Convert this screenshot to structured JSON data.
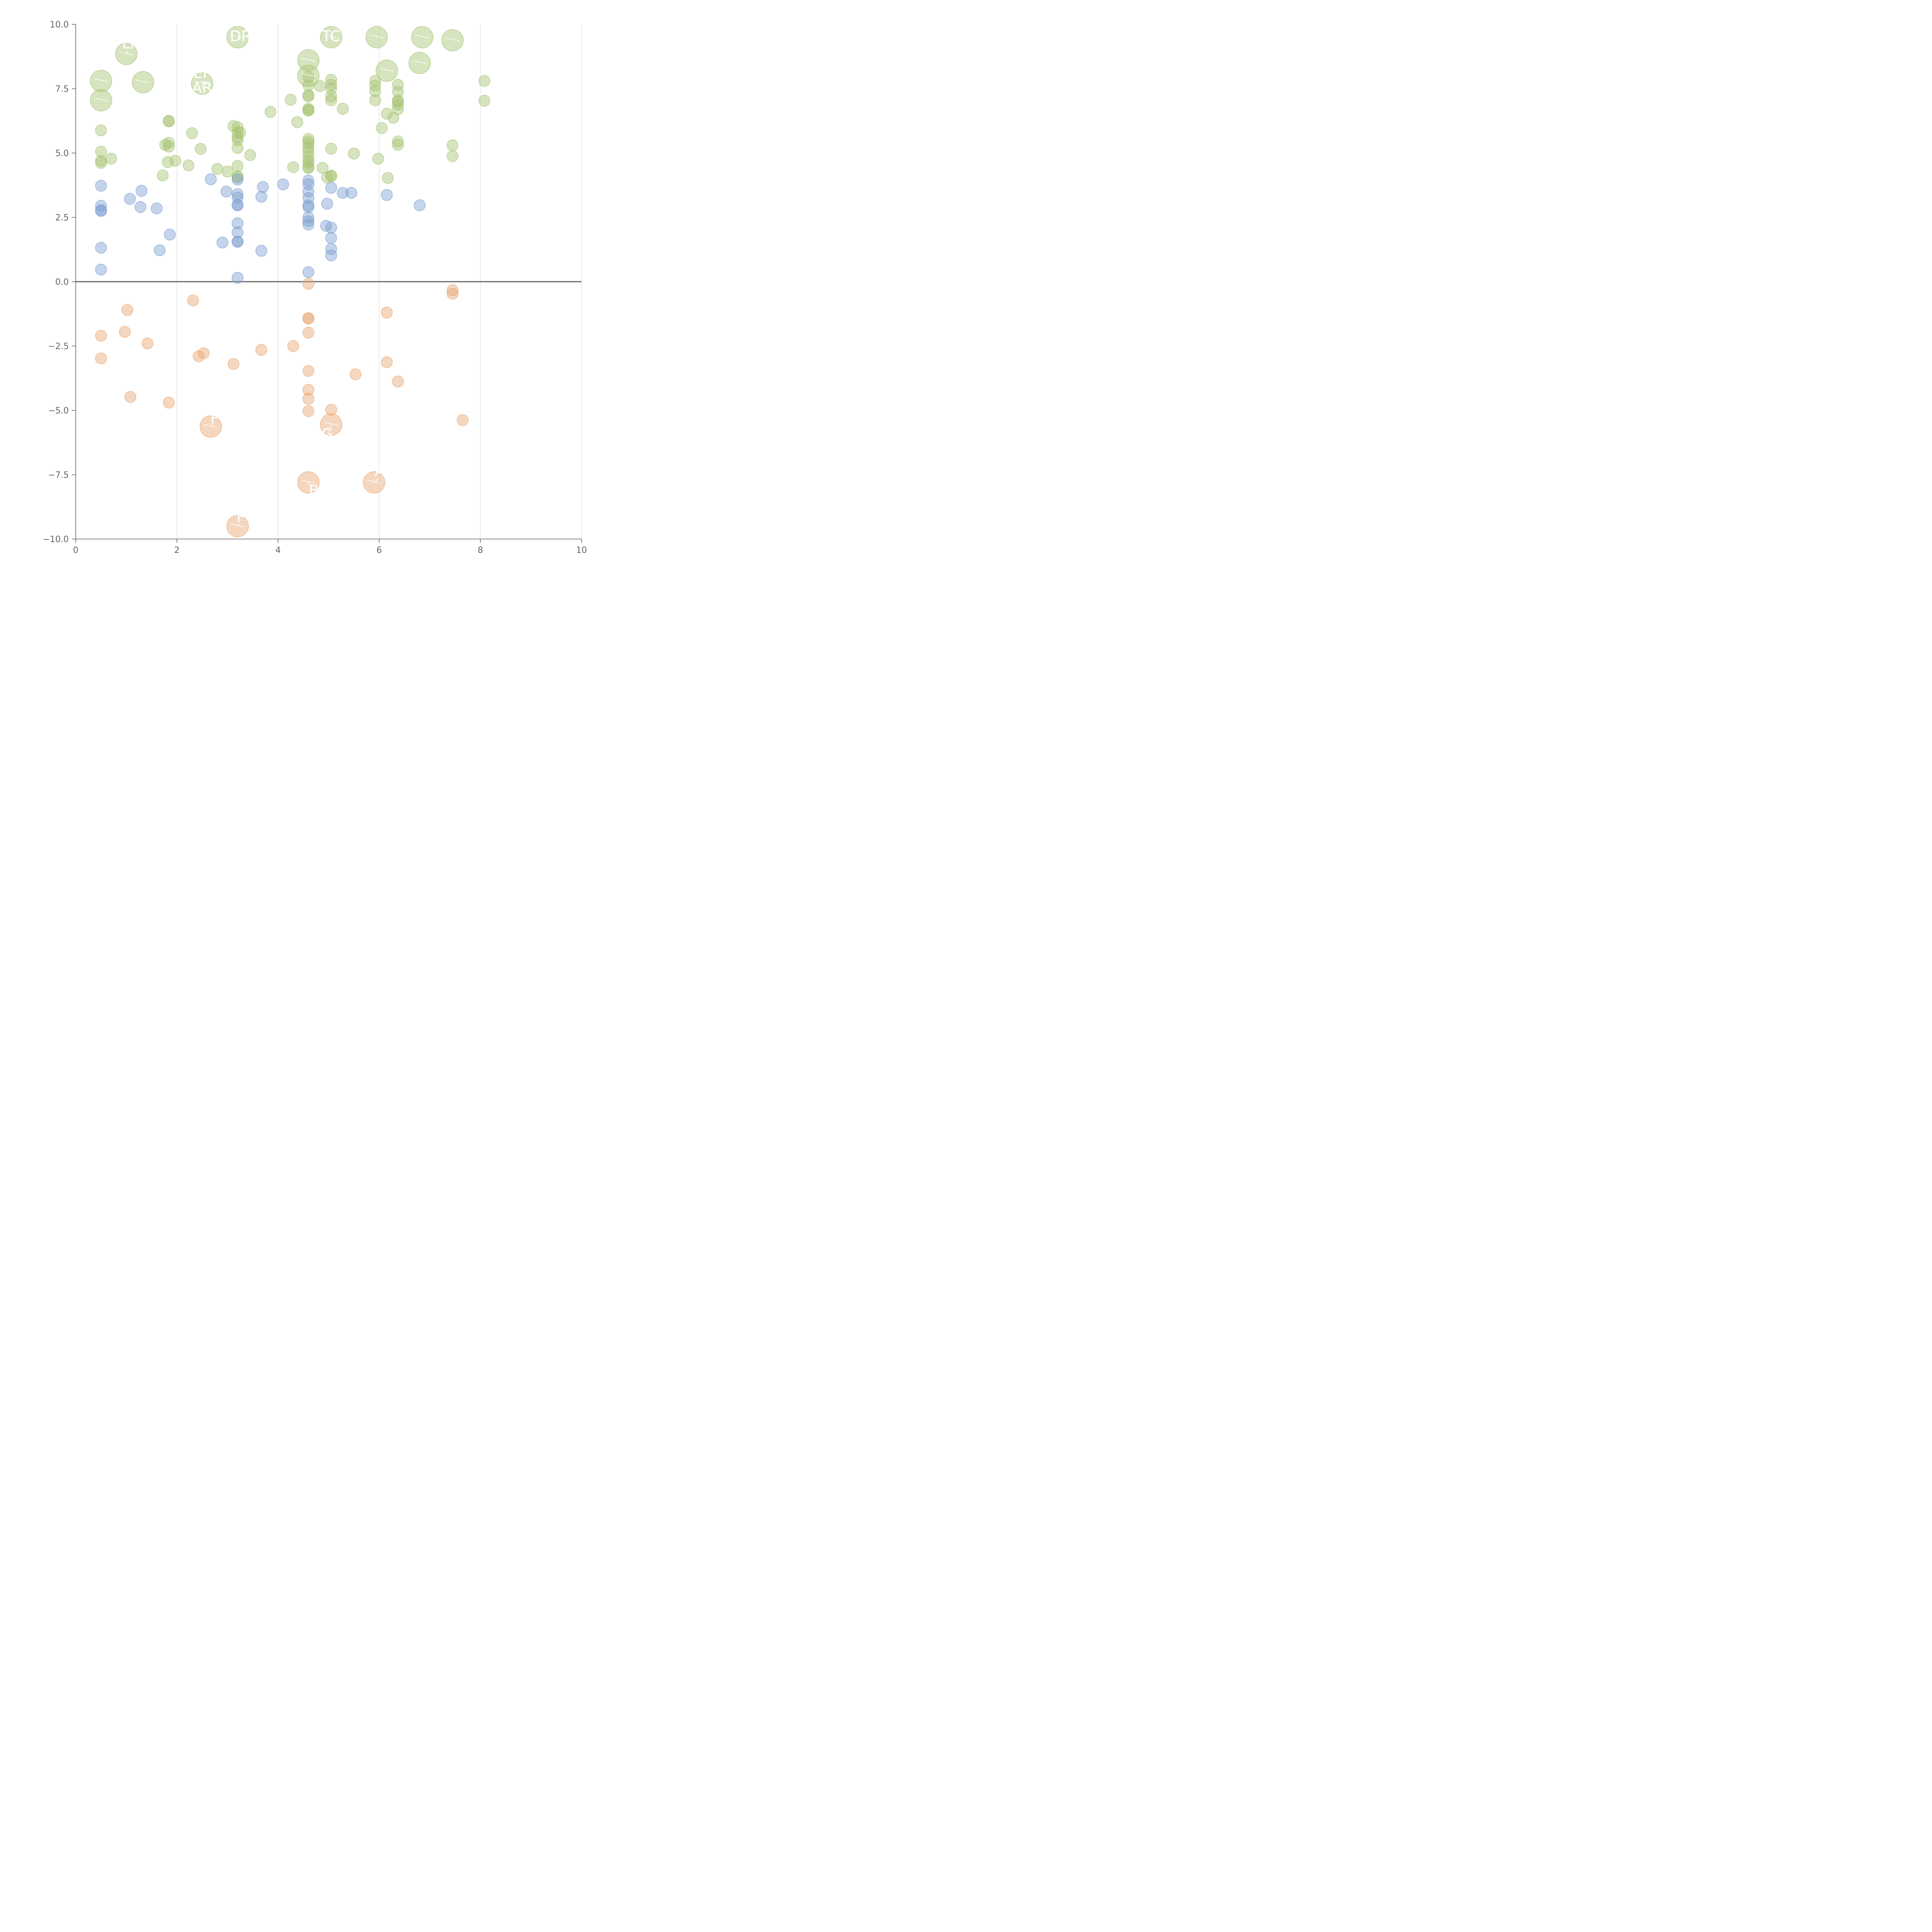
{
  "chart_data": {
    "type": "scatter",
    "title": "",
    "xlabel": "",
    "ylabel": "",
    "xlim": [
      0,
      10
    ],
    "ylim": [
      -10,
      10
    ],
    "x_ticks": [
      0,
      2,
      4,
      6,
      8,
      10
    ],
    "x_tick_labels": [
      "0",
      "2",
      "4",
      "6",
      "8",
      "10"
    ],
    "y_ticks": [
      -10,
      -7.5,
      -5,
      -2.5,
      0,
      2.5,
      5,
      7.5,
      10
    ],
    "y_tick_labels": [
      "−10.0",
      "−7.5",
      "−5.0",
      "−2.5",
      "0.0",
      "2.5",
      "5.0",
      "7.5",
      "10.0"
    ],
    "grid": "vertical",
    "zero_line": true,
    "series": [
      {
        "color": "#a7c474",
        "points": [
          [
            0.5,
            7.8,
            "L"
          ],
          [
            0.5,
            7.05,
            "L"
          ],
          [
            1.0,
            8.85,
            "L"
          ],
          [
            1.33,
            7.75,
            "L"
          ],
          [
            2.5,
            7.7,
            "L"
          ],
          [
            3.2,
            9.5,
            "L"
          ],
          [
            4.6,
            8.6,
            "L"
          ],
          [
            4.6,
            8.0,
            "L"
          ],
          [
            5.05,
            9.5,
            "L"
          ],
          [
            5.95,
            9.5,
            "L"
          ],
          [
            6.15,
            8.2,
            "L"
          ],
          [
            6.8,
            8.5,
            "L"
          ],
          [
            6.85,
            9.5,
            "L"
          ],
          [
            7.45,
            9.38,
            "L"
          ],
          [
            0.5,
            5.88
          ],
          [
            0.5,
            5.05
          ],
          [
            0.5,
            4.7
          ],
          [
            0.5,
            4.62
          ],
          [
            0.7,
            4.78
          ],
          [
            1.72,
            4.13
          ],
          [
            1.77,
            5.32
          ],
          [
            1.82,
            4.65
          ],
          [
            1.84,
            6.23
          ],
          [
            1.84,
            6.25
          ],
          [
            1.84,
            5.4
          ],
          [
            1.84,
            5.25
          ],
          [
            1.97,
            4.7
          ],
          [
            2.23,
            4.52
          ],
          [
            2.3,
            5.77
          ],
          [
            2.47,
            5.16
          ],
          [
            2.8,
            4.38
          ],
          [
            3.0,
            4.28
          ],
          [
            3.12,
            6.05
          ],
          [
            3.2,
            6.0
          ],
          [
            3.2,
            5.8
          ],
          [
            3.2,
            5.62
          ],
          [
            3.2,
            5.5
          ],
          [
            3.2,
            5.2
          ],
          [
            3.25,
            5.8
          ],
          [
            3.2,
            4.5
          ],
          [
            3.2,
            4.1
          ],
          [
            3.2,
            4.05
          ],
          [
            3.45,
            4.92
          ],
          [
            3.85,
            6.6
          ],
          [
            4.25,
            7.07
          ],
          [
            4.3,
            4.45
          ],
          [
            4.38,
            6.2
          ],
          [
            4.6,
            7.95
          ],
          [
            4.6,
            7.63
          ],
          [
            4.6,
            7.25
          ],
          [
            4.6,
            7.2
          ],
          [
            4.6,
            6.72
          ],
          [
            4.6,
            6.67
          ],
          [
            4.6,
            6.65
          ],
          [
            4.6,
            5.55
          ],
          [
            4.6,
            5.45
          ],
          [
            4.6,
            5.35
          ],
          [
            4.6,
            5.2
          ],
          [
            4.6,
            5.05
          ],
          [
            4.6,
            4.87
          ],
          [
            4.6,
            4.7
          ],
          [
            4.6,
            4.62
          ],
          [
            4.6,
            4.45
          ],
          [
            4.6,
            4.42
          ],
          [
            4.83,
            7.6
          ],
          [
            4.88,
            4.42
          ],
          [
            4.97,
            4.05
          ],
          [
            5.05,
            7.85
          ],
          [
            5.05,
            7.65
          ],
          [
            5.05,
            7.5
          ],
          [
            5.05,
            7.2
          ],
          [
            5.05,
            7.05
          ],
          [
            5.05,
            5.17
          ],
          [
            5.05,
            4.12
          ],
          [
            5.05,
            4.1
          ],
          [
            5.28,
            6.72
          ],
          [
            5.5,
            4.98
          ],
          [
            5.92,
            7.8
          ],
          [
            5.92,
            7.62
          ],
          [
            5.92,
            7.4
          ],
          [
            5.92,
            7.05
          ],
          [
            5.98,
            4.78
          ],
          [
            6.05,
            5.97
          ],
          [
            6.15,
            6.53
          ],
          [
            6.17,
            4.03
          ],
          [
            6.28,
            6.37
          ],
          [
            6.37,
            7.65
          ],
          [
            6.37,
            7.38
          ],
          [
            6.37,
            7.05
          ],
          [
            6.37,
            7.0
          ],
          [
            6.37,
            6.88
          ],
          [
            6.37,
            6.7
          ],
          [
            6.37,
            5.45
          ],
          [
            6.37,
            5.32
          ],
          [
            7.45,
            5.3
          ],
          [
            7.45,
            4.88
          ],
          [
            8.08,
            7.8
          ],
          [
            8.08,
            7.03
          ]
        ]
      },
      {
        "color": "#7da0d1",
        "points": [
          [
            0.5,
            3.73
          ],
          [
            0.5,
            2.95
          ],
          [
            0.5,
            2.78
          ],
          [
            0.5,
            2.75
          ],
          [
            0.5,
            1.32
          ],
          [
            0.5,
            0.47
          ],
          [
            1.07,
            3.22
          ],
          [
            1.28,
            2.9
          ],
          [
            1.3,
            3.53
          ],
          [
            1.6,
            2.85
          ],
          [
            1.66,
            1.22
          ],
          [
            1.86,
            1.83
          ],
          [
            2.67,
            3.98
          ],
          [
            2.9,
            1.52
          ],
          [
            2.98,
            3.5
          ],
          [
            3.2,
            3.97
          ],
          [
            3.2,
            3.4
          ],
          [
            3.2,
            3.27
          ],
          [
            3.2,
            2.98
          ],
          [
            3.2,
            2.97
          ],
          [
            3.2,
            2.27
          ],
          [
            3.2,
            1.92
          ],
          [
            3.2,
            1.56
          ],
          [
            3.2,
            1.55
          ],
          [
            3.2,
            0.15
          ],
          [
            3.67,
            3.3
          ],
          [
            3.67,
            1.2
          ],
          [
            3.7,
            3.68
          ],
          [
            4.1,
            3.78
          ],
          [
            4.6,
            3.93
          ],
          [
            4.6,
            3.78
          ],
          [
            4.6,
            3.5
          ],
          [
            4.6,
            3.25
          ],
          [
            4.6,
            2.97
          ],
          [
            4.6,
            2.9
          ],
          [
            4.6,
            2.5
          ],
          [
            4.6,
            2.35
          ],
          [
            4.6,
            2.22
          ],
          [
            4.6,
            0.37
          ],
          [
            4.95,
            2.17
          ],
          [
            4.97,
            3.03
          ],
          [
            5.05,
            3.65
          ],
          [
            5.05,
            2.1
          ],
          [
            5.05,
            1.7
          ],
          [
            5.05,
            1.27
          ],
          [
            5.05,
            1.02
          ],
          [
            5.28,
            3.45
          ],
          [
            5.45,
            3.45
          ],
          [
            6.15,
            3.37
          ],
          [
            6.8,
            2.97
          ]
        ]
      },
      {
        "color": "#e8a670",
        "points": [
          [
            2.67,
            -5.63,
            "L"
          ],
          [
            5.05,
            -5.55,
            "L"
          ],
          [
            4.6,
            -7.8,
            "L"
          ],
          [
            5.9,
            -7.8,
            "L"
          ],
          [
            3.2,
            -9.5,
            "L"
          ],
          [
            0.5,
            -2.1
          ],
          [
            0.5,
            -2.98
          ],
          [
            0.97,
            -1.95
          ],
          [
            1.02,
            -1.1
          ],
          [
            1.08,
            -4.48
          ],
          [
            1.42,
            -2.4
          ],
          [
            1.84,
            -4.7
          ],
          [
            2.32,
            -0.73
          ],
          [
            2.43,
            -2.9
          ],
          [
            2.53,
            -2.78
          ],
          [
            3.12,
            -3.2
          ],
          [
            3.67,
            -2.65
          ],
          [
            4.3,
            -2.5
          ],
          [
            4.6,
            -0.08
          ],
          [
            4.6,
            -1.42
          ],
          [
            4.6,
            -1.43
          ],
          [
            4.6,
            -1.98
          ],
          [
            4.6,
            -3.47
          ],
          [
            4.6,
            -4.2
          ],
          [
            4.6,
            -4.55
          ],
          [
            4.6,
            -5.03
          ],
          [
            5.05,
            -4.98
          ],
          [
            5.53,
            -3.6
          ],
          [
            6.15,
            -1.2
          ],
          [
            6.15,
            -3.13
          ],
          [
            6.37,
            -3.88
          ],
          [
            7.45,
            -0.33
          ],
          [
            7.45,
            -0.47
          ],
          [
            7.65,
            -5.38
          ]
        ]
      }
    ],
    "point_labels": [
      "LI",
      "DR",
      "TC",
      "EF",
      "AR",
      "F",
      "G",
      "A",
      "B",
      "F"
    ]
  }
}
